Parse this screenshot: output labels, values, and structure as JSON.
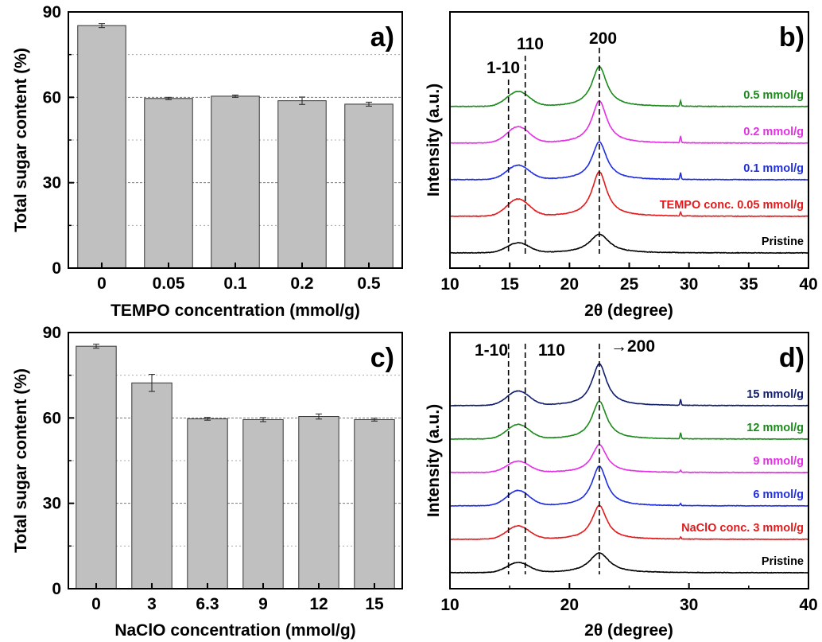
{
  "chart_data": [
    {
      "panel": "a",
      "type": "bar",
      "panel_label": "a)",
      "xlabel": "TEMPO concentration (mmol/g)",
      "ylabel": "Total sugar content (%)",
      "ylim": [
        0,
        90
      ],
      "yticks": [
        "0",
        "30",
        "60",
        "90"
      ],
      "categories": [
        "0",
        "0.05",
        "0.1",
        "0.2",
        "0.5"
      ],
      "values": [
        85.2,
        59.6,
        60.4,
        58.8,
        57.6
      ],
      "errors": [
        0.7,
        0.4,
        0.4,
        1.3,
        0.7
      ],
      "bar_color": "#c0c0c0",
      "grid": "dashed major and minor horizontal lines"
    },
    {
      "panel": "b",
      "type": "line",
      "panel_label": "b)",
      "xlabel": "2θ (degree)",
      "ylabel": "Intensity (a.u.)",
      "xlim": [
        10,
        40
      ],
      "xticks": [
        "10",
        "15",
        "20",
        "25",
        "30",
        "35",
        "40"
      ],
      "peak_labels": [
        "1-10",
        "110",
        "200"
      ],
      "peak_positions": [
        14.9,
        16.3,
        22.5
      ],
      "series": [
        {
          "name": "Pristine",
          "color": "#000000",
          "p110": 0.22,
          "p200": 0.42,
          "w200": 1.0,
          "spike": 0.0
        },
        {
          "name": "TEMPO conc. 0.05 mmol/g",
          "color": "#e31a1c",
          "p110": 0.38,
          "p200": 1.0,
          "w200": 0.75,
          "spike": 0.08
        },
        {
          "name": "0.1 mmol/g",
          "color": "#1f2ee0",
          "p110": 0.32,
          "p200": 0.85,
          "w200": 0.75,
          "spike": 0.15
        },
        {
          "name": "0.2 mmol/g",
          "color": "#e52ee5",
          "p110": 0.36,
          "p200": 0.95,
          "w200": 0.75,
          "spike": 0.15
        },
        {
          "name": "0.5 mmol/g",
          "color": "#1a8a1a",
          "p110": 0.33,
          "p200": 0.9,
          "w200": 0.75,
          "spike": 0.12
        }
      ]
    },
    {
      "panel": "c",
      "type": "bar",
      "panel_label": "c)",
      "xlabel": "NaClO concentration (mmol/g)",
      "ylabel": "Total sugar content (%)",
      "ylim": [
        0,
        90
      ],
      "yticks": [
        "0",
        "30",
        "60",
        "90"
      ],
      "categories": [
        "0",
        "3",
        "6.3",
        "9",
        "12",
        "15"
      ],
      "values": [
        85.2,
        72.3,
        59.7,
        59.4,
        60.5,
        59.4
      ],
      "errors": [
        0.7,
        3.0,
        0.5,
        0.7,
        0.9,
        0.5
      ],
      "bar_color": "#c0c0c0",
      "grid": "dashed major and minor horizontal lines"
    },
    {
      "panel": "d",
      "type": "line",
      "panel_label": "d)",
      "xlabel": "2θ (degree)",
      "ylabel": "Intensity (a.u.)",
      "xlim": [
        10,
        40
      ],
      "xticks": [
        "10",
        "20",
        "30",
        "40"
      ],
      "peak_labels": [
        "1-10",
        "110",
        "→200"
      ],
      "peak_positions": [
        14.9,
        16.3,
        22.5
      ],
      "series": [
        {
          "name": "Pristine",
          "color": "#000000",
          "p110": 0.25,
          "p200": 0.5,
          "w200": 1.0,
          "spike": 0.0
        },
        {
          "name": "NaClO conc. 3 mmol/g",
          "color": "#e31a1c",
          "p110": 0.33,
          "p200": 0.85,
          "w200": 0.75,
          "spike": 0.05
        },
        {
          "name": "6 mmol/g",
          "color": "#1f2ee0",
          "p110": 0.38,
          "p200": 1.0,
          "w200": 0.75,
          "spike": 0.05
        },
        {
          "name": "9 mmol/g",
          "color": "#e52ee5",
          "p110": 0.28,
          "p200": 0.7,
          "w200": 0.75,
          "spike": 0.05
        },
        {
          "name": "12 mmol/g",
          "color": "#1a8a1a",
          "p110": 0.36,
          "p200": 0.95,
          "w200": 0.75,
          "spike": 0.15
        },
        {
          "name": "15 mmol/g",
          "color": "#101c6e",
          "p110": 0.36,
          "p200": 1.05,
          "w200": 0.75,
          "spike": 0.15
        }
      ]
    }
  ]
}
